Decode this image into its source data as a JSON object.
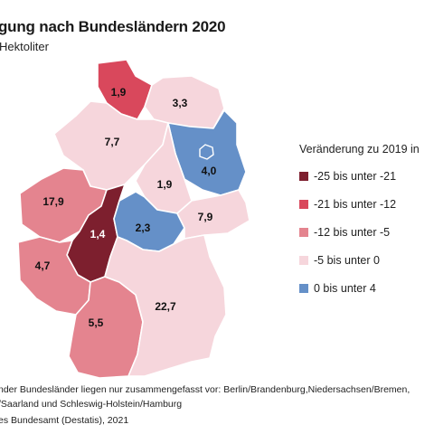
{
  "title": "gung nach Bundesländern 2020",
  "subtitle": "Hektoliter",
  "legend": {
    "title": "Veränderung zu 2019 in",
    "items": [
      {
        "label": "-25 bis unter -21",
        "color": "#7d1f2e"
      },
      {
        "label": "-21 bis unter -12",
        "color": "#d9485c"
      },
      {
        "label": "-12 bis unter -5",
        "color": "#e4848f"
      },
      {
        "label": "-5 bis unter 0",
        "color": "#f6d6dc"
      },
      {
        "label": "0 bis unter 4",
        "color": "#6590c8"
      }
    ]
  },
  "regions": [
    {
      "id": "schleswig-holstein-hamburg",
      "value": "1,9",
      "class": "-21 bis unter -12"
    },
    {
      "id": "mecklenburg-vorpommern",
      "value": "3,3",
      "class": "-5 bis unter 0"
    },
    {
      "id": "niedersachsen-bremen",
      "value": "7,7",
      "class": "-5 bis unter 0"
    },
    {
      "id": "berlin-brandenburg",
      "value": "4,0",
      "class": "0 bis unter 4"
    },
    {
      "id": "sachsen-anhalt",
      "value": "1,9",
      "class": "-5 bis unter 0"
    },
    {
      "id": "nordrhein-westfalen",
      "value": "17,9",
      "class": "-12 bis unter -5"
    },
    {
      "id": "hessen",
      "value": "1,4",
      "class": "-25 bis unter -21"
    },
    {
      "id": "thueringen",
      "value": "2,3",
      "class": "0 bis unter 4"
    },
    {
      "id": "sachsen",
      "value": "7,9",
      "class": "-5 bis unter 0"
    },
    {
      "id": "rheinland-pfalz-saarland",
      "value": "4,7",
      "class": "-12 bis unter -5"
    },
    {
      "id": "baden-wuerttemberg",
      "value": "5,5",
      "class": "-12 bis unter -5"
    },
    {
      "id": "bayern",
      "value": "22,7",
      "class": "-5 bis unter 0"
    }
  ],
  "footnote": {
    "line1": "nder Bundesländer liegen nur zusammengefasst vor: Berlin/Brandenburg,Niedersachsen/Bremen,",
    "line2": "/Saarland und Schleswig-Holstein/Hamburg"
  },
  "source": "es Bundesamt (Destatis), 2021"
}
